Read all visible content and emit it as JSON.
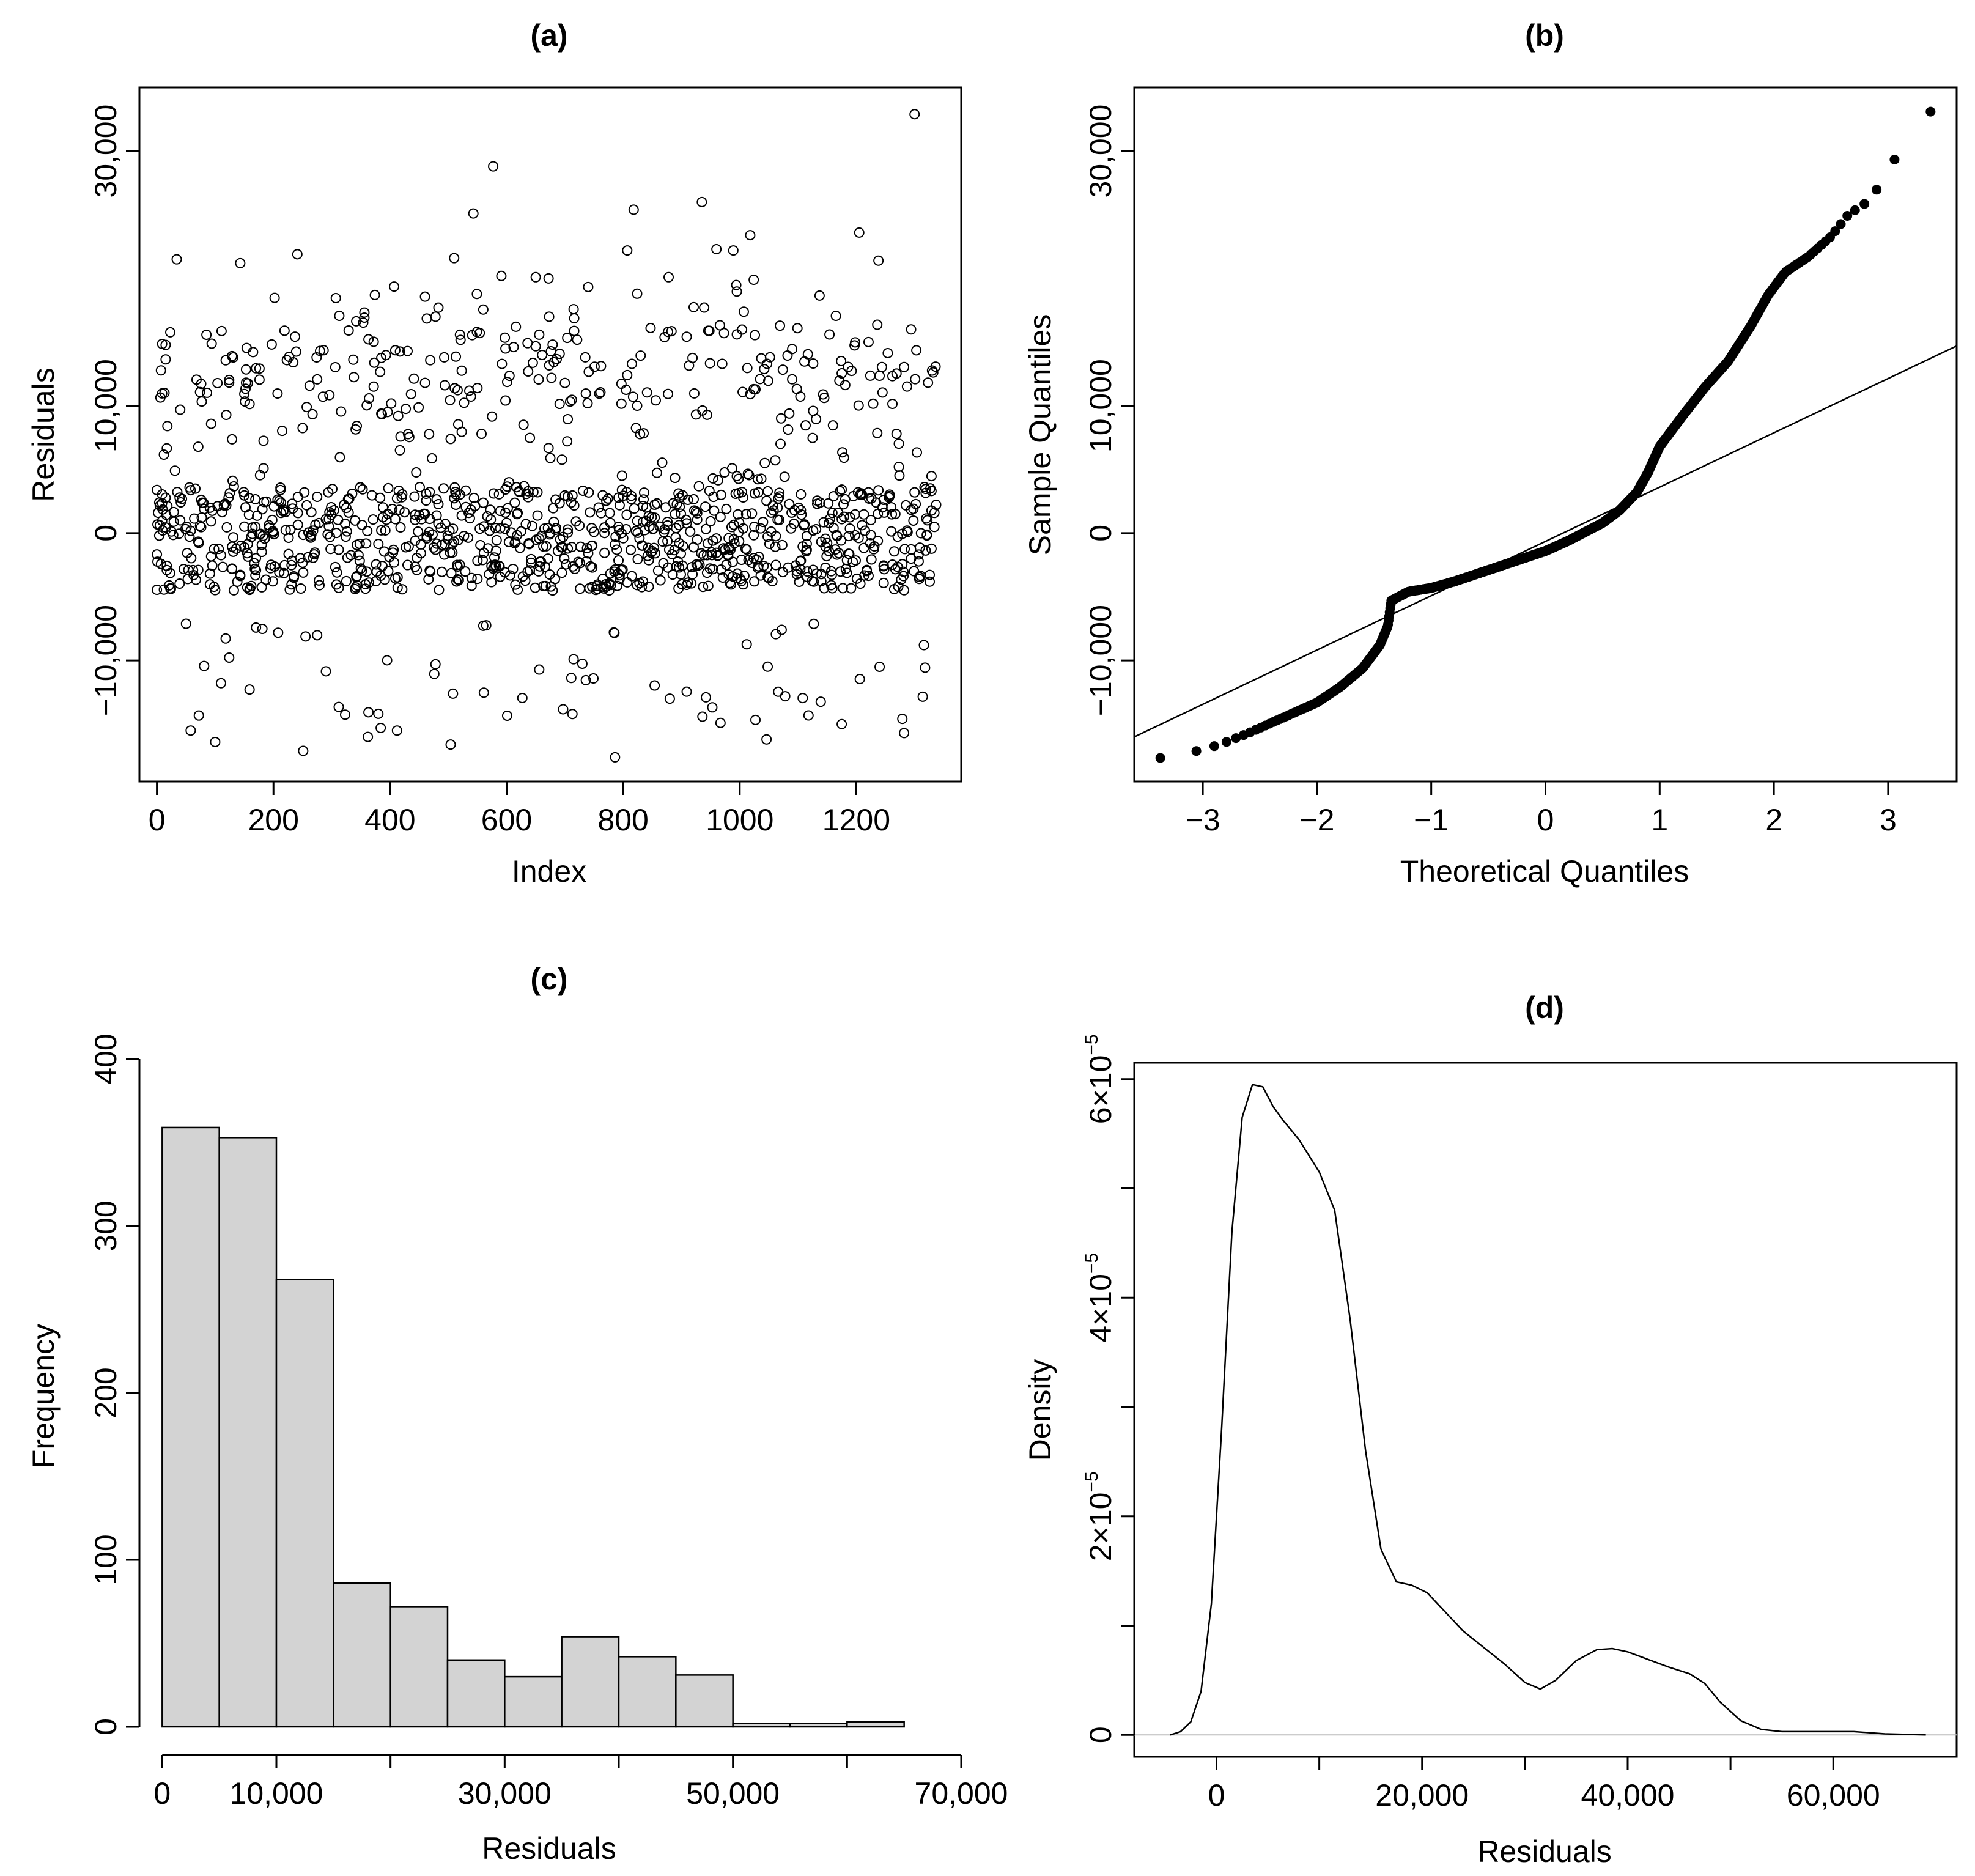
{
  "chart_data": [
    {
      "id": "a",
      "type": "scatter",
      "title": "(a)",
      "xlabel": "Index",
      "ylabel": "Residuals",
      "xlim": [
        -30,
        1380
      ],
      "ylim": [
        -19500,
        35000
      ],
      "xticks": [
        0,
        200,
        400,
        600,
        800,
        1000,
        1200
      ],
      "xtick_labels": [
        "0",
        "200",
        "400",
        "600",
        "800",
        "1000",
        "1200"
      ],
      "yticks": [
        -10000,
        0,
        10000,
        30000
      ],
      "ytick_labels": [
        "−10,000",
        "0",
        "10,000",
        "30,000"
      ],
      "n_points": 1338,
      "marker": "open-circle",
      "outliers": [
        {
          "x": 1300,
          "y": 32900
        },
        {
          "x": 577,
          "y": 28800
        },
        {
          "x": 543,
          "y": 25100
        },
        {
          "x": 935,
          "y": 26000
        },
        {
          "x": 818,
          "y": 25400
        },
        {
          "x": 1205,
          "y": 23600
        },
        {
          "x": 1018,
          "y": 23400
        },
        {
          "x": 34,
          "y": 21500
        },
        {
          "x": 143,
          "y": 21200
        },
        {
          "x": 241,
          "y": 21900
        },
        {
          "x": 510,
          "y": 21600
        },
        {
          "x": 1238,
          "y": 21400
        },
        {
          "x": 960,
          "y": 22300
        },
        {
          "x": 989,
          "y": 22200
        },
        {
          "x": 807,
          "y": 22200
        },
        {
          "x": 1024,
          "y": 19900
        },
        {
          "x": 650,
          "y": 20100
        },
        {
          "x": 591,
          "y": 20200
        },
        {
          "x": 672,
          "y": 20000
        },
        {
          "x": 878,
          "y": 20100
        },
        {
          "x": 502,
          "y": 201
        },
        {
          "x": 100,
          "y": -16400
        },
        {
          "x": 251,
          "y": -17100
        },
        {
          "x": 504,
          "y": -16600
        },
        {
          "x": 786,
          "y": -17600
        },
        {
          "x": 1046,
          "y": -16200
        },
        {
          "x": 1282,
          "y": -15700
        },
        {
          "x": 58,
          "y": -15500
        },
        {
          "x": 384,
          "y": -15300
        },
        {
          "x": 412,
          "y": -15500
        },
        {
          "x": 362,
          "y": -16000
        },
        {
          "x": 967,
          "y": -14900
        },
        {
          "x": 1175,
          "y": -15000
        }
      ]
    },
    {
      "id": "b",
      "type": "scatter",
      "title": "(b)",
      "xlabel": "Theoretical Quantiles",
      "ylabel": "Sample Quantiles",
      "xlim": [
        -3.6,
        3.6
      ],
      "ylim": [
        -19500,
        35000
      ],
      "xticks": [
        -3,
        -2,
        -1,
        0,
        1,
        2,
        3
      ],
      "xtick_labels": [
        "−3",
        "−2",
        "−1",
        "0",
        "1",
        "2",
        "3"
      ],
      "yticks": [
        -10000,
        0,
        10000,
        30000
      ],
      "ytick_labels": [
        "−10,000",
        "0",
        "10,000",
        "30,000"
      ],
      "marker": "filled-circle",
      "reference_line": {
        "x": [
          -3.6,
          3.6
        ],
        "y": [
          -16000,
          14700
        ]
      },
      "quantile_curve": [
        {
          "x": -3.4,
          "y": -17700
        },
        {
          "x": -3.05,
          "y": -17100
        },
        {
          "x": -2.85,
          "y": -16600
        },
        {
          "x": -2.6,
          "y": -15700
        },
        {
          "x": -2.4,
          "y": -14900
        },
        {
          "x": -2.2,
          "y": -14100
        },
        {
          "x": -2.0,
          "y": -13300
        },
        {
          "x": -1.8,
          "y": -12100
        },
        {
          "x": -1.6,
          "y": -10600
        },
        {
          "x": -1.45,
          "y": -8800
        },
        {
          "x": -1.38,
          "y": -7300
        },
        {
          "x": -1.35,
          "y": -5300
        },
        {
          "x": -1.2,
          "y": -4600
        },
        {
          "x": -1.0,
          "y": -4300
        },
        {
          "x": -0.8,
          "y": -3800
        },
        {
          "x": -0.5,
          "y": -2900
        },
        {
          "x": -0.2,
          "y": -2000
        },
        {
          "x": 0.0,
          "y": -1400
        },
        {
          "x": 0.2,
          "y": -600
        },
        {
          "x": 0.5,
          "y": 800
        },
        {
          "x": 0.65,
          "y": 1800
        },
        {
          "x": 0.8,
          "y": 3200
        },
        {
          "x": 0.9,
          "y": 4800
        },
        {
          "x": 1.0,
          "y": 6800
        },
        {
          "x": 1.2,
          "y": 9200
        },
        {
          "x": 1.4,
          "y": 11500
        },
        {
          "x": 1.6,
          "y": 13500
        },
        {
          "x": 1.8,
          "y": 16300
        },
        {
          "x": 1.95,
          "y": 18700
        },
        {
          "x": 2.1,
          "y": 20500
        },
        {
          "x": 2.3,
          "y": 21700
        },
        {
          "x": 2.5,
          "y": 23300
        },
        {
          "x": 2.65,
          "y": 25000
        },
        {
          "x": 2.85,
          "y": 26200
        },
        {
          "x": 3.03,
          "y": 29000
        },
        {
          "x": 3.35,
          "y": 33100
        }
      ]
    },
    {
      "id": "c",
      "type": "bar",
      "title": "(c)",
      "xlabel": "Residuals",
      "ylabel": "Frequency",
      "xlim": [
        -2000,
        70000
      ],
      "ylim": [
        0,
        400
      ],
      "bin_edges": [
        0,
        5000,
        10000,
        15000,
        20000,
        25000,
        30000,
        35000,
        40000,
        45000,
        50000,
        55000,
        60000,
        65000
      ],
      "values": [
        359,
        353,
        268,
        86,
        72,
        40,
        30,
        54,
        42,
        31,
        2,
        2,
        3
      ],
      "xticks": [
        0,
        10000,
        30000,
        50000,
        70000
      ],
      "xtick_labels": [
        "0",
        "10,000",
        "30,000",
        "50,000",
        "70,000"
      ],
      "xminor_ticks": [
        20000,
        40000,
        60000
      ],
      "yticks": [
        0,
        100,
        200,
        300,
        400
      ],
      "ytick_labels": [
        "0",
        "100",
        "200",
        "300",
        "400"
      ],
      "bar_color": "#d3d3d3"
    },
    {
      "id": "d",
      "type": "line",
      "title": "(d)",
      "xlabel": "Residuals",
      "ylabel": "Density",
      "xlim": [
        -8000,
        72000
      ],
      "ylim": [
        -2e-06,
        6.15e-05
      ],
      "xticks": [
        0,
        20000,
        40000,
        60000
      ],
      "xtick_labels": [
        "0",
        "20,000",
        "40,000",
        "60,000"
      ],
      "xminor_ticks": [
        10000,
        30000,
        50000
      ],
      "yticks": [
        0,
        2e-05,
        4e-05,
        6e-05
      ],
      "ytick_labels": [
        "0",
        "2×10",
        "4×10",
        "6×10"
      ],
      "ytick_exponent": "−5",
      "yminor_ticks": [
        1e-05,
        3e-05,
        5e-05
      ],
      "baseline_color": "#bbbbbb",
      "x": [
        -4500,
        -3500,
        -2500,
        -1500,
        -500,
        500,
        1500,
        2500,
        3500,
        4500,
        5500,
        6500,
        8000,
        10000,
        11500,
        13000,
        14500,
        16000,
        17500,
        19000,
        20500,
        22000,
        24000,
        26000,
        28000,
        30000,
        31500,
        33000,
        35000,
        37000,
        38500,
        40000,
        42000,
        44000,
        46000,
        47500,
        49000,
        51000,
        53000,
        55000,
        58000,
        62000,
        65000,
        69000
      ],
      "y": [
        0,
        3e-07,
        1.2e-06,
        4e-06,
        1.2e-05,
        2.8e-05,
        4.6e-05,
        5.65e-05,
        5.95e-05,
        5.93e-05,
        5.75e-05,
        5.62e-05,
        5.45e-05,
        5.15e-05,
        4.8e-05,
        3.8e-05,
        2.6e-05,
        1.7e-05,
        1.4e-05,
        1.37e-05,
        1.3e-05,
        1.15e-05,
        9.5e-06,
        8e-06,
        6.5e-06,
        4.8e-06,
        4.2e-06,
        5e-06,
        6.8e-06,
        7.8e-06,
        7.9e-06,
        7.6e-06,
        6.9e-06,
        6.2e-06,
        5.6e-06,
        4.7e-06,
        3e-06,
        1.3e-06,
        5e-07,
        3e-07,
        3e-07,
        3e-07,
        1e-07,
        0
      ]
    }
  ]
}
